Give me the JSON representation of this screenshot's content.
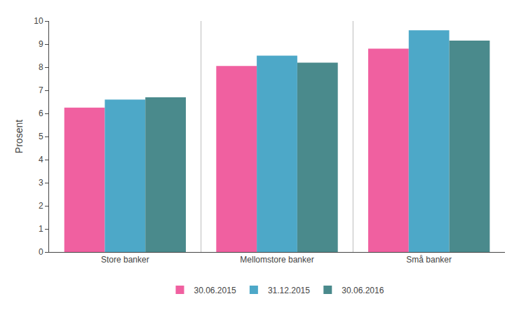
{
  "chart_data": {
    "type": "bar",
    "categories": [
      "Store banker",
      "Mellomstore banker",
      "Små banker"
    ],
    "series": [
      {
        "name": "30.06.2015",
        "color": "#F060A0",
        "values": [
          6.25,
          8.05,
          8.8
        ]
      },
      {
        "name": "31.12.2015",
        "color": "#4DA8C8",
        "values": [
          6.6,
          8.5,
          9.6
        ]
      },
      {
        "name": "30.06.2016",
        "color": "#4A8A8C",
        "values": [
          6.7,
          8.2,
          9.15
        ]
      }
    ],
    "ylabel": "Prosent",
    "ylim": [
      0,
      10
    ],
    "yticks": [
      0,
      1,
      2,
      3,
      4,
      5,
      6,
      7,
      8,
      9,
      10
    ],
    "grid": false,
    "legend": "bottom"
  }
}
